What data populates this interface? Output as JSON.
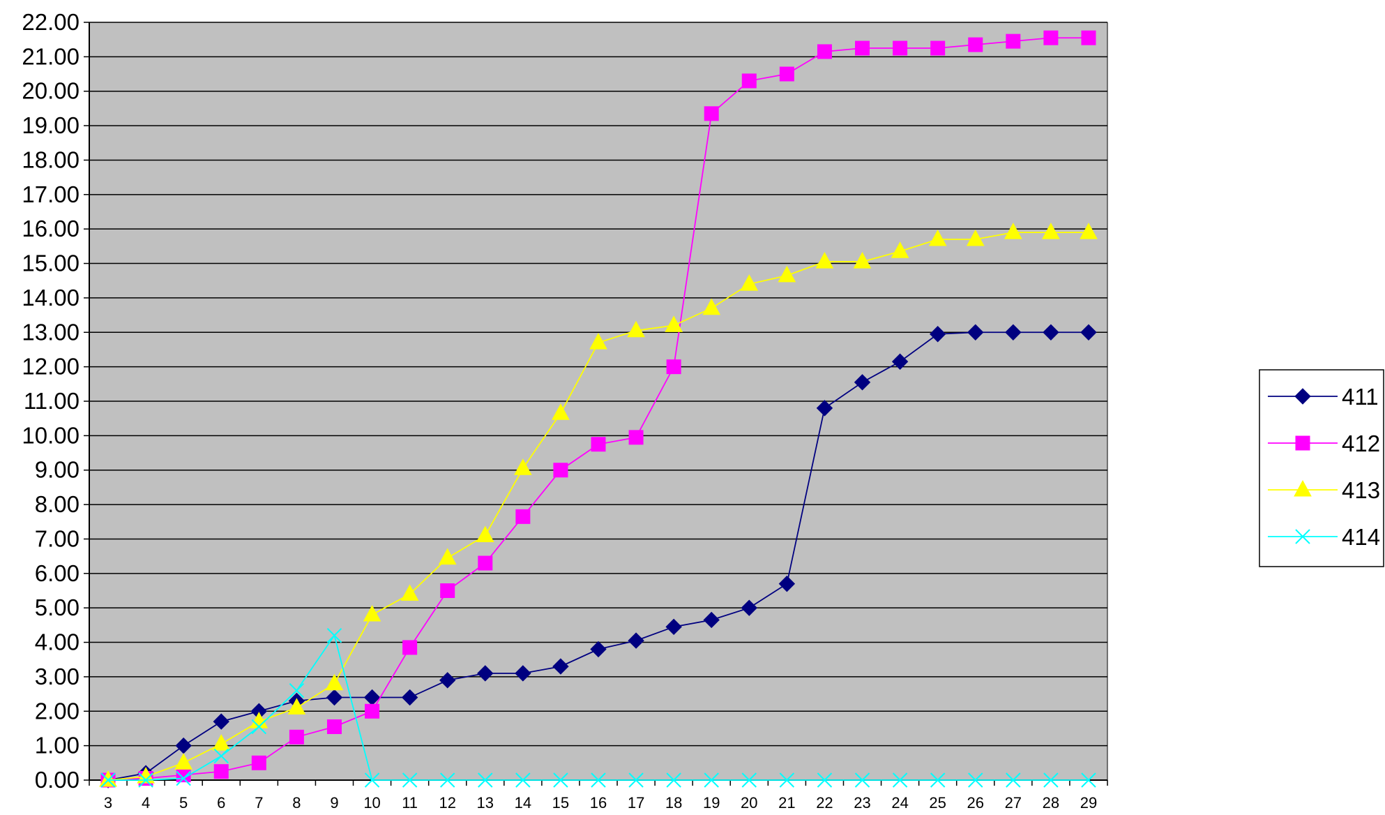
{
  "chart_data": {
    "type": "line",
    "title": "",
    "xlabel": "",
    "ylabel": "",
    "x": [
      3,
      4,
      5,
      6,
      7,
      8,
      9,
      10,
      11,
      12,
      13,
      14,
      15,
      16,
      17,
      18,
      19,
      20,
      21,
      22,
      23,
      24,
      25,
      26,
      27,
      28,
      29
    ],
    "xlim": [
      3,
      29
    ],
    "ylim": [
      0,
      22
    ],
    "ytick_labels": [
      "0.00",
      "1.00",
      "2.00",
      "3.00",
      "4.00",
      "5.00",
      "6.00",
      "7.00",
      "8.00",
      "9.00",
      "10.00",
      "11.00",
      "12.00",
      "13.00",
      "14.00",
      "15.00",
      "16.00",
      "17.00",
      "18.00",
      "19.00",
      "20.00",
      "21.00",
      "22.00"
    ],
    "grid": true,
    "plot_background": "#c0c0c0",
    "legend_position": "right",
    "series": [
      {
        "name": "411",
        "color": "#000080",
        "marker": "diamond",
        "values": [
          0.0,
          0.2,
          1.0,
          1.7,
          2.0,
          2.3,
          2.4,
          2.4,
          2.4,
          2.9,
          3.1,
          3.1,
          3.3,
          3.8,
          4.05,
          4.45,
          4.65,
          5.0,
          5.7,
          10.8,
          11.55,
          12.15,
          12.95,
          13.0,
          13.0,
          13.0,
          13.0
        ]
      },
      {
        "name": "412",
        "color": "#ff00ff",
        "marker": "square",
        "values": [
          0.0,
          0.05,
          0.15,
          0.25,
          0.5,
          1.25,
          1.55,
          2.0,
          3.85,
          5.5,
          6.3,
          7.65,
          9.0,
          9.75,
          9.95,
          12.0,
          19.35,
          20.3,
          20.5,
          21.15,
          21.25,
          21.25,
          21.25,
          21.35,
          21.45,
          21.55,
          21.55
        ]
      },
      {
        "name": "413",
        "color": "#ffff00",
        "marker": "triangle",
        "values": [
          0.0,
          0.1,
          0.5,
          1.05,
          1.7,
          2.1,
          2.8,
          4.8,
          5.4,
          6.45,
          7.1,
          9.05,
          10.65,
          12.7,
          13.05,
          13.2,
          13.7,
          14.4,
          14.65,
          15.05,
          15.05,
          15.35,
          15.7,
          15.7,
          15.9,
          15.9,
          15.9
        ]
      },
      {
        "name": "414",
        "color": "#00ffff",
        "marker": "x",
        "values": [
          0.0,
          0.0,
          0.05,
          0.7,
          1.55,
          2.6,
          4.2,
          0.0,
          0.0,
          0.0,
          0.0,
          0.0,
          0.0,
          0.0,
          0.0,
          0.0,
          0.0,
          0.0,
          0.0,
          0.0,
          0.0,
          0.0,
          0.0,
          0.0,
          0.0,
          0.0,
          0.0
        ]
      }
    ]
  }
}
